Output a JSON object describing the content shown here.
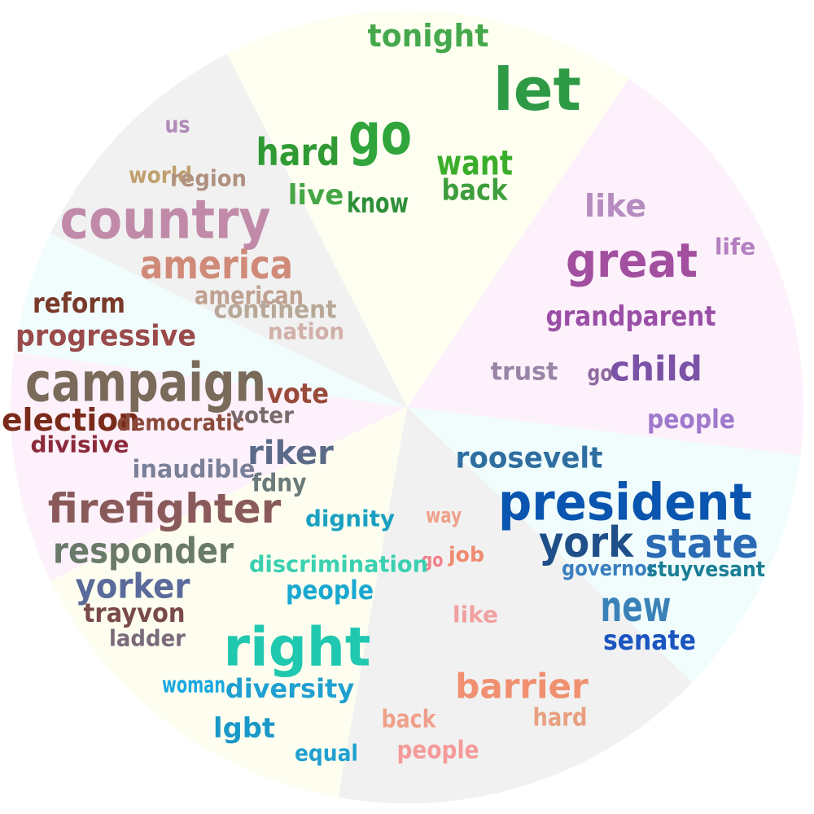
{
  "sectors": [
    {
      "id": "s1",
      "fill": "#fefff0",
      "words": [
        {
          "text": "tonight",
          "color": "#46a84c"
        },
        {
          "text": "let",
          "color": "#2e9a45"
        },
        {
          "text": "go",
          "color": "#2fa53b"
        },
        {
          "text": "hard",
          "color": "#2f9a33"
        },
        {
          "text": "want",
          "color": "#3aae2a"
        },
        {
          "text": "back",
          "color": "#3e9e3e"
        },
        {
          "text": "live",
          "color": "#45a645"
        },
        {
          "text": "know",
          "color": "#2e8f3a"
        }
      ]
    },
    {
      "id": "s2",
      "fill": "#fdf1fb",
      "words": [
        {
          "text": "like",
          "color": "#b58bc0"
        },
        {
          "text": "great",
          "color": "#a24fa0"
        },
        {
          "text": "life",
          "color": "#b47fc0"
        },
        {
          "text": "grandparent",
          "color": "#9a4ea6"
        },
        {
          "text": "trust",
          "color": "#9a84a6"
        },
        {
          "text": "go",
          "color": "#8f6aa0"
        },
        {
          "text": "child",
          "color": "#7a52a6"
        },
        {
          "text": "people",
          "color": "#9f79cc"
        }
      ]
    },
    {
      "id": "s3",
      "fill": "#f1fdfd",
      "words": [
        {
          "text": "roosevelt",
          "color": "#2f6ea0"
        },
        {
          "text": "president",
          "color": "#0a55b0"
        },
        {
          "text": "york",
          "color": "#1f4f88"
        },
        {
          "text": "state",
          "color": "#2a6ab5"
        },
        {
          "text": "governor",
          "color": "#3a7fbf"
        },
        {
          "text": "stuyvesant",
          "color": "#1a7f95"
        },
        {
          "text": "new",
          "color": "#3a82b8"
        },
        {
          "text": "senate",
          "color": "#1a55c0"
        }
      ]
    },
    {
      "id": "s4",
      "fill": "#f1f1f1",
      "words": [
        {
          "text": "way",
          "color": "#f0a08a"
        },
        {
          "text": "go",
          "color": "#f27f8a"
        },
        {
          "text": "job",
          "color": "#f08a70"
        },
        {
          "text": "like",
          "color": "#f0a0a0"
        },
        {
          "text": "barrier",
          "color": "#f09070"
        },
        {
          "text": "back",
          "color": "#f0a08a"
        },
        {
          "text": "hard",
          "color": "#e8a080"
        },
        {
          "text": "people",
          "color": "#f59a9a"
        }
      ]
    },
    {
      "id": "s5",
      "fill": "#fefef0",
      "words": [
        {
          "text": "dignity",
          "color": "#1aa0c0"
        },
        {
          "text": "discrimination",
          "color": "#3ad0b0"
        },
        {
          "text": "people",
          "color": "#1aa8d0"
        },
        {
          "text": "right",
          "color": "#20c8b0"
        },
        {
          "text": "woman",
          "color": "#1aa8e0"
        },
        {
          "text": "diversity",
          "color": "#20a0d0"
        },
        {
          "text": "lgbt",
          "color": "#1a98c8"
        },
        {
          "text": "equal",
          "color": "#20a0d0"
        }
      ]
    },
    {
      "id": "s6",
      "fill": "#fdf1fb",
      "words": [
        {
          "text": "riker",
          "color": "#5a6a88"
        },
        {
          "text": "inaudible",
          "color": "#7a8098"
        },
        {
          "text": "fdny",
          "color": "#6a7a7a"
        },
        {
          "text": "firefighter",
          "color": "#8a5a5a"
        },
        {
          "text": "responder",
          "color": "#6a7a6a"
        },
        {
          "text": "yorker",
          "color": "#5a6a9a"
        },
        {
          "text": "trayvon",
          "color": "#7a4a4a"
        },
        {
          "text": "ladder",
          "color": "#7a6a7a"
        }
      ]
    },
    {
      "id": "s7",
      "fill": "#f1fdfd",
      "words": [
        {
          "text": "reform",
          "color": "#7a3a2a"
        },
        {
          "text": "progressive",
          "color": "#9a4a4a"
        },
        {
          "text": "campaign",
          "color": "#7a6a5a"
        },
        {
          "text": "vote",
          "color": "#9a4a3a"
        },
        {
          "text": "election",
          "color": "#7a2a1a"
        },
        {
          "text": "democratic",
          "color": "#8a4a3a"
        },
        {
          "text": "voter",
          "color": "#7a6a6a"
        },
        {
          "text": "divisive",
          "color": "#8a2a3a"
        }
      ]
    },
    {
      "id": "s8",
      "fill": "#f1f1f1",
      "words": [
        {
          "text": "us",
          "color": "#b08ab8"
        },
        {
          "text": "world",
          "color": "#c0a070"
        },
        {
          "text": "region",
          "color": "#b09080"
        },
        {
          "text": "country",
          "color": "#c08aa8"
        },
        {
          "text": "america",
          "color": "#d08a78"
        },
        {
          "text": "american",
          "color": "#c0a090"
        },
        {
          "text": "continent",
          "color": "#b8a898"
        },
        {
          "text": "nation",
          "color": "#d0b0a8"
        }
      ]
    }
  ]
}
